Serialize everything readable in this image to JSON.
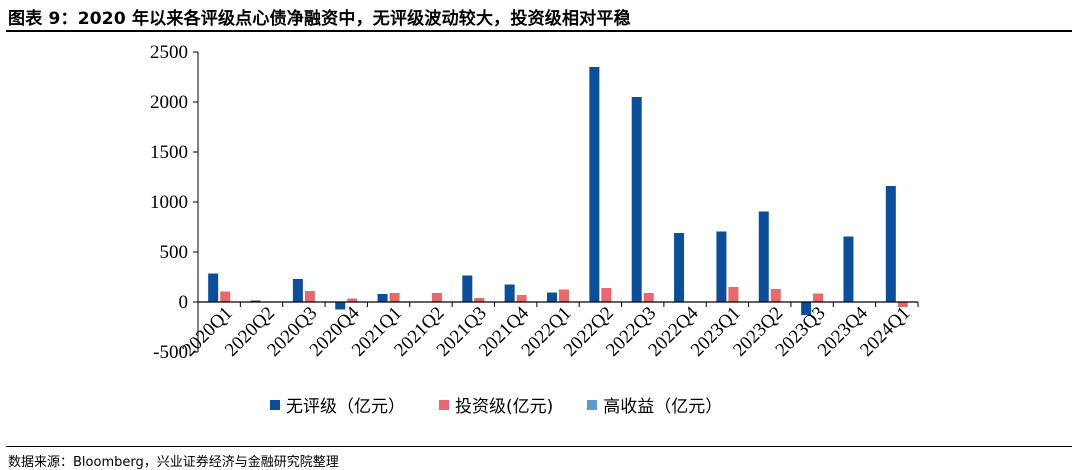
{
  "title": "图表 9：2020 年以来各评级点心债净融资中，无评级波动较大，投资级相对平稳",
  "source": "数据来源：Bloomberg，兴业证券经济与金融研究院整理",
  "colors": {
    "unrated": "#0b4f9c",
    "investment_grade": "#e8686b",
    "high_yield": "#5b9bd5"
  },
  "chart_data": {
    "type": "bar",
    "categories": [
      "2020Q1",
      "2020Q2",
      "2020Q3",
      "2020Q4",
      "2021Q1",
      "2021Q2",
      "2021Q3",
      "2021Q4",
      "2022Q1",
      "2022Q2",
      "2022Q3",
      "2022Q4",
      "2023Q1",
      "2023Q2",
      "2023Q3",
      "2023Q4",
      "2024Q1"
    ],
    "series": [
      {
        "name": "无评级（亿元）",
        "values": [
          285,
          15,
          230,
          -75,
          80,
          0,
          265,
          175,
          95,
          2350,
          2050,
          690,
          705,
          905,
          -130,
          655,
          1160
        ]
      },
      {
        "name": "投资级(亿元)",
        "values": [
          105,
          0,
          110,
          35,
          90,
          90,
          40,
          70,
          125,
          140,
          90,
          0,
          150,
          130,
          85,
          0,
          -50
        ]
      },
      {
        "name": "高收益（亿元）",
        "values": [
          0,
          0,
          0,
          0,
          0,
          0,
          0,
          0,
          0,
          0,
          0,
          0,
          0,
          0,
          0,
          0,
          0
        ]
      }
    ],
    "ylim": [
      -500,
      2500
    ],
    "yticks": [
      "-500",
      "0",
      "500",
      "1000",
      "1500",
      "2000",
      "2500"
    ],
    "legend_position": "bottom"
  }
}
